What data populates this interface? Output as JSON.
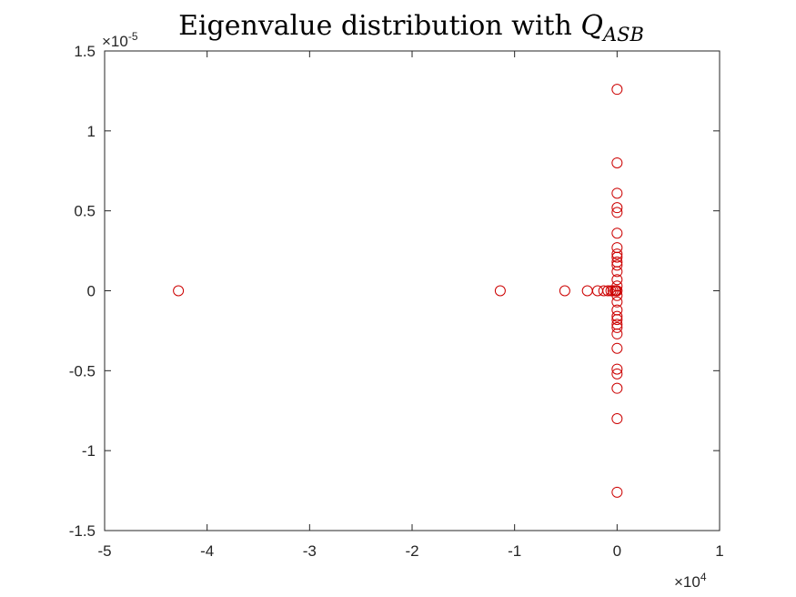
{
  "chart_data": {
    "type": "scatter",
    "title_main": "Eigenvalue distribution with ",
    "title_math": "Q",
    "title_sub": "ASB",
    "xlabel": "",
    "ylabel": "",
    "xlim": [
      -5,
      1
    ],
    "ylim": [
      -1.5,
      1.5
    ],
    "x_ticks": [
      -5,
      -4,
      -3,
      -2,
      -1,
      0,
      1
    ],
    "y_ticks": [
      -1.5,
      -1,
      -0.5,
      0,
      0.5,
      1,
      1.5
    ],
    "x_tick_labels": [
      "-5",
      "-4",
      "-3",
      "-2",
      "-1",
      "0",
      "1"
    ],
    "y_tick_labels": [
      "-1.5",
      "-1",
      "-0.5",
      "0",
      "0.5",
      "1",
      "1.5"
    ],
    "x_exponent_base": "×10",
    "x_exponent_power": "4",
    "y_exponent_base": "×10",
    "y_exponent_power": "-5",
    "grid": false,
    "box": true,
    "marker": "circle",
    "marker_color": "#cc0000",
    "axis_color": "#262626",
    "series": [
      {
        "points": [
          [
            -4.28,
            0
          ],
          [
            -1.14,
            0
          ],
          [
            -0.51,
            0
          ],
          [
            -0.29,
            0
          ],
          [
            -0.19,
            0
          ],
          [
            -0.13,
            0
          ],
          [
            -0.09,
            0
          ],
          [
            -0.06,
            0
          ],
          [
            -0.04,
            0
          ],
          [
            -0.02,
            0
          ],
          [
            -0.01,
            0
          ],
          [
            0,
            0
          ],
          [
            0,
            1.26
          ],
          [
            0,
            -1.26
          ],
          [
            0,
            0.8
          ],
          [
            0,
            -0.8
          ],
          [
            0,
            0.61
          ],
          [
            0,
            -0.61
          ],
          [
            0,
            0.52
          ],
          [
            0,
            -0.52
          ],
          [
            0,
            0.49
          ],
          [
            0,
            -0.49
          ],
          [
            0,
            0.36
          ],
          [
            0,
            -0.36
          ],
          [
            0,
            0.27
          ],
          [
            0,
            -0.27
          ],
          [
            0,
            0.23
          ],
          [
            0,
            -0.23
          ],
          [
            0,
            0.21
          ],
          [
            0,
            -0.21
          ],
          [
            0,
            0.18
          ],
          [
            0,
            -0.18
          ],
          [
            0,
            0.16
          ],
          [
            0,
            -0.16
          ],
          [
            0,
            0.12
          ],
          [
            0,
            -0.12
          ],
          [
            0,
            0.07
          ],
          [
            0,
            -0.07
          ],
          [
            0,
            0.03
          ],
          [
            0,
            -0.03
          ]
        ]
      }
    ]
  }
}
